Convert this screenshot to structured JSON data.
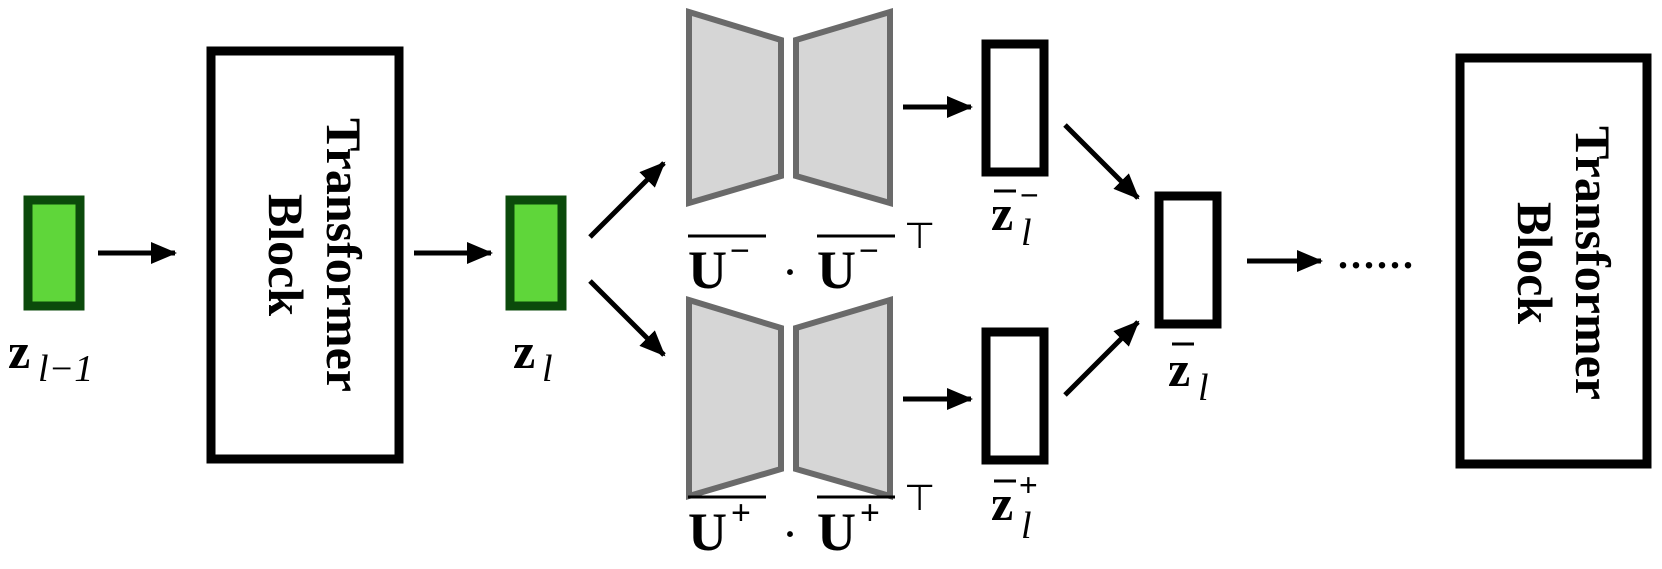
{
  "blocks": {
    "left": {
      "line1": "Transformer",
      "line2": "Block"
    },
    "right": {
      "line1": "Transformer",
      "line2": "Block"
    }
  },
  "labels": {
    "z_prev": {
      "base": "z",
      "sub": "l−1"
    },
    "z_curr": {
      "base": "z",
      "sub": "l"
    },
    "u_minus": {
      "base": "U",
      "sup": "−",
      "dot": "·",
      "transpose": "⊤"
    },
    "u_plus": {
      "base": "U",
      "sup": "+",
      "dot": "·",
      "transpose": "⊤"
    },
    "zbar_minus": {
      "base": "z",
      "sub": "l",
      "sup": "−"
    },
    "zbar_plus": {
      "base": "z",
      "sub": "l",
      "sup": "+"
    },
    "zbar": {
      "base": "z",
      "sub": "l"
    },
    "ellipsis": "......"
  },
  "colors": {
    "green_fill": "#5fd63a",
    "green_border": "#0b4a0b",
    "projector_fill": "#d6d6d6",
    "projector_stroke": "#6a6a6a",
    "line": "#000000"
  }
}
